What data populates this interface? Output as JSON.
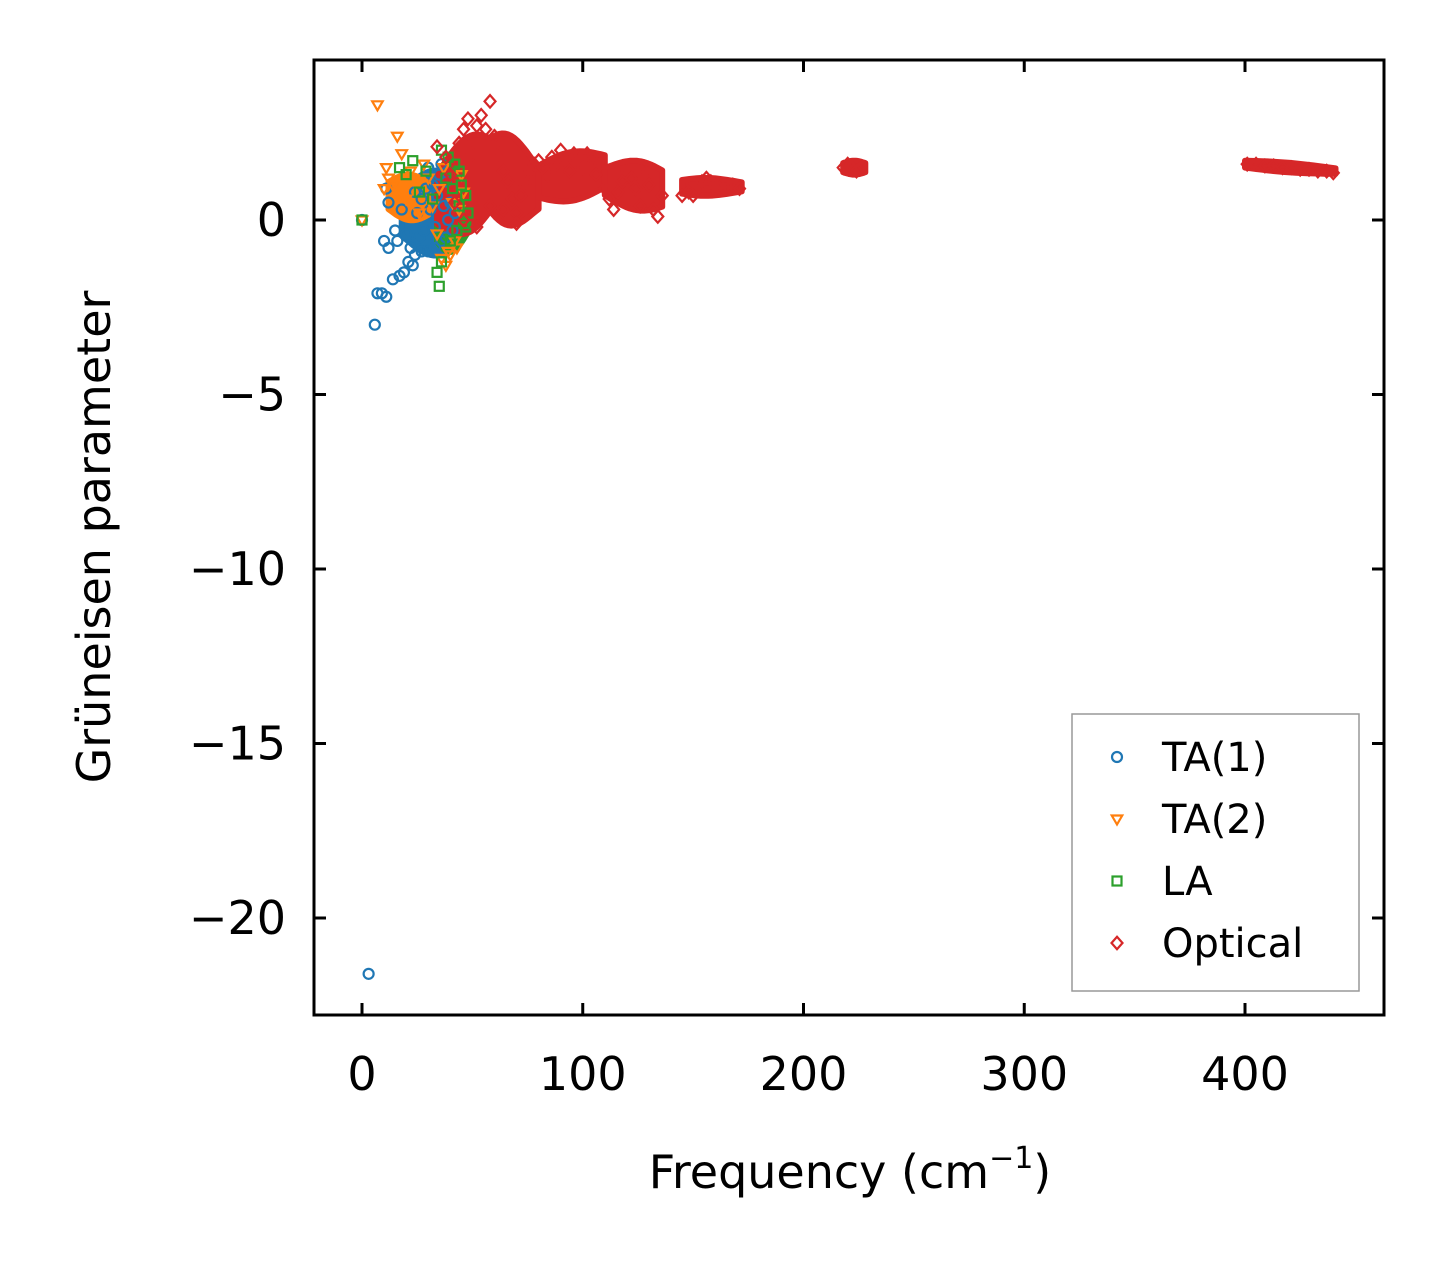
{
  "chart_data": {
    "type": "scatter",
    "title": "",
    "xlabel": "Frequency (cm",
    "xlabel_sup": "−1",
    "xlabel_close": ")",
    "ylabel": "Grüneisen parameter",
    "xlim": [
      -22,
      462
    ],
    "ylim": [
      -22.8,
      4.6
    ],
    "x_ticks": [
      0,
      100,
      200,
      300,
      400
    ],
    "x_tick_labels": [
      "0",
      "100",
      "200",
      "300",
      "400"
    ],
    "y_ticks": [
      0,
      -5,
      -10,
      -15,
      -20
    ],
    "y_tick_labels": [
      "0",
      "−5",
      "−10",
      "−15",
      "−20"
    ],
    "legend_position": "lower-right",
    "grid": false,
    "series": [
      {
        "name": "TA(1)",
        "marker": "circle",
        "color": "#1f77b4",
        "points": [
          [
            0,
            0
          ],
          [
            3,
            -21.6
          ],
          [
            5.8,
            -3.0
          ],
          [
            7,
            -2.1
          ],
          [
            9,
            -2.1
          ],
          [
            11,
            -2.2
          ],
          [
            10,
            -0.6
          ],
          [
            12,
            -0.8
          ],
          [
            14,
            -1.7
          ],
          [
            17,
            -1.6
          ],
          [
            19,
            -1.5
          ],
          [
            21,
            -1.2
          ],
          [
            23,
            -1.3
          ],
          [
            11,
            0.9
          ],
          [
            12,
            0.5
          ],
          [
            15,
            -0.3
          ],
          [
            16,
            -0.6
          ],
          [
            18,
            0.3
          ],
          [
            20,
            -0.4
          ],
          [
            22,
            -0.8
          ],
          [
            24,
            -1.0
          ],
          [
            25,
            0.2
          ],
          [
            26,
            -0.5
          ],
          [
            27,
            0.6
          ],
          [
            28,
            -0.3
          ],
          [
            29,
            0.9
          ],
          [
            30,
            -0.9
          ],
          [
            31,
            0.3
          ],
          [
            32,
            1.0
          ],
          [
            33,
            -0.2
          ],
          [
            34,
            0.7
          ],
          [
            35,
            1.3
          ],
          [
            36,
            -0.6
          ],
          [
            37,
            0.4
          ],
          [
            38,
            1.1
          ],
          [
            39,
            0.0
          ],
          [
            40,
            0.5
          ],
          [
            41,
            -0.3
          ],
          [
            24,
            0.8
          ],
          [
            27,
            -0.9
          ],
          [
            30,
            1.5
          ],
          [
            33,
            -0.8
          ],
          [
            36,
            1.6
          ],
          [
            38,
            -0.5
          ],
          [
            42,
            0.2
          ]
        ]
      },
      {
        "name": "TA(2)",
        "marker": "triangle-down",
        "color": "#ff7f0e",
        "points": [
          [
            0,
            0
          ],
          [
            7,
            3.3
          ],
          [
            10,
            0.9
          ],
          [
            11,
            1.5
          ],
          [
            12,
            1.2
          ],
          [
            14,
            1.0
          ],
          [
            16,
            2.4
          ],
          [
            18,
            1.9
          ],
          [
            20,
            0.6
          ],
          [
            22,
            1.4
          ],
          [
            24,
            1.1
          ],
          [
            26,
            0.2
          ],
          [
            28,
            1.6
          ],
          [
            30,
            1.2
          ],
          [
            32,
            0.4
          ],
          [
            34,
            -0.4
          ],
          [
            36,
            -1.1
          ],
          [
            38,
            -1.3
          ],
          [
            40,
            -1.0
          ],
          [
            42,
            -0.6
          ],
          [
            44,
            0.3
          ],
          [
            46,
            0.8
          ],
          [
            45,
            1.3
          ],
          [
            43,
            -0.8
          ],
          [
            41,
            0.5
          ],
          [
            39,
            -0.9
          ],
          [
            37,
            1.5
          ],
          [
            35,
            0.9
          ]
        ]
      },
      {
        "name": "LA",
        "marker": "square",
        "color": "#2ca02c",
        "points": [
          [
            0,
            0
          ],
          [
            17,
            1.5
          ],
          [
            20,
            1.3
          ],
          [
            23,
            1.7
          ],
          [
            26,
            0.8
          ],
          [
            29,
            1.4
          ],
          [
            32,
            0.6
          ],
          [
            34,
            -1.5
          ],
          [
            35,
            -1.9
          ],
          [
            36,
            2.0
          ],
          [
            38,
            1.2
          ],
          [
            40,
            -0.6
          ],
          [
            41,
            0.9
          ],
          [
            42,
            1.6
          ],
          [
            43,
            -0.3
          ],
          [
            44,
            0.4
          ],
          [
            45,
            1.0
          ],
          [
            46,
            -0.1
          ],
          [
            47,
            0.7
          ],
          [
            48,
            0.2
          ],
          [
            36,
            -1.2
          ],
          [
            39,
            1.8
          ],
          [
            44,
            1.4
          ],
          [
            47,
            -0.2
          ]
        ]
      },
      {
        "name": "Optical",
        "marker": "diamond",
        "color": "#d62728",
        "points": [
          [
            34,
            2.1
          ],
          [
            38,
            1.8
          ],
          [
            40,
            1.3
          ],
          [
            42,
            0.5
          ],
          [
            44,
            2.2
          ],
          [
            46,
            2.6
          ],
          [
            48,
            2.9
          ],
          [
            50,
            1.9
          ],
          [
            52,
            2.7
          ],
          [
            54,
            3.0
          ],
          [
            56,
            2.6
          ],
          [
            58,
            3.4
          ],
          [
            60,
            2.4
          ],
          [
            62,
            1.9
          ],
          [
            64,
            1.4
          ],
          [
            66,
            1.1
          ],
          [
            68,
            0.6
          ],
          [
            70,
            0.2
          ],
          [
            72,
            0.7
          ],
          [
            74,
            1.0
          ],
          [
            76,
            1.4
          ],
          [
            78,
            1.6
          ],
          [
            80,
            1.7
          ],
          [
            82,
            1.5
          ],
          [
            84,
            1.3
          ],
          [
            86,
            1.8
          ],
          [
            88,
            1.6
          ],
          [
            90,
            2.0
          ],
          [
            92,
            1.7
          ],
          [
            94,
            1.4
          ],
          [
            96,
            1.9
          ],
          [
            98,
            1.8
          ],
          [
            100,
            1.5
          ],
          [
            102,
            1.9
          ],
          [
            104,
            1.8
          ],
          [
            106,
            1.3
          ],
          [
            108,
            1.6
          ],
          [
            110,
            0.9
          ],
          [
            112,
            0.6
          ],
          [
            114,
            0.3
          ],
          [
            116,
            0.8
          ],
          [
            118,
            1.1
          ],
          [
            120,
            1.4
          ],
          [
            122,
            1.2
          ],
          [
            124,
            0.9
          ],
          [
            126,
            0.4
          ],
          [
            128,
            1.3
          ],
          [
            130,
            1.0
          ],
          [
            132,
            0.3
          ],
          [
            134,
            0.1
          ],
          [
            136,
            0.7
          ],
          [
            46,
            0.0
          ],
          [
            52,
            -0.2
          ],
          [
            58,
            0.4
          ],
          [
            64,
            0.3
          ],
          [
            70,
            -0.1
          ],
          [
            145,
            0.7
          ],
          [
            148,
            0.8
          ],
          [
            150,
            0.7
          ],
          [
            152,
            0.9
          ],
          [
            154,
            1.1
          ],
          [
            156,
            1.2
          ],
          [
            158,
            1.1
          ],
          [
            160,
            1.0
          ],
          [
            162,
            0.9
          ],
          [
            165,
            1.0
          ],
          [
            168,
            1.0
          ],
          [
            171,
            0.9
          ],
          [
            218,
            1.5
          ],
          [
            220,
            1.6
          ],
          [
            222,
            1.5
          ],
          [
            224,
            1.4
          ],
          [
            226,
            1.5
          ],
          [
            401,
            1.6
          ],
          [
            405,
            1.6
          ],
          [
            409,
            1.55
          ],
          [
            413,
            1.55
          ],
          [
            417,
            1.5
          ],
          [
            421,
            1.5
          ],
          [
            425,
            1.45
          ],
          [
            429,
            1.45
          ],
          [
            433,
            1.4
          ],
          [
            437,
            1.4
          ],
          [
            440,
            1.35
          ]
        ]
      }
    ],
    "regions": [
      {
        "series": "TA(1)",
        "x_range": [
          18,
          44
        ],
        "y_center": [
          0.2,
          0.2
        ],
        "y_half": [
          1.0,
          1.4
        ]
      },
      {
        "series": "LA",
        "x_range": [
          34,
          48
        ],
        "y_center": [
          0.3,
          0.3
        ],
        "y_half": [
          1.4,
          1.0
        ]
      },
      {
        "series": "TA(2)",
        "x_range": [
          12,
          30
        ],
        "y_center": [
          0.7,
          0.6
        ],
        "y_half": [
          0.6,
          0.7
        ]
      },
      {
        "series": "Optical",
        "x_range": [
          34,
          58
        ],
        "y_center": [
          0.6,
          1.3
        ],
        "y_half": [
          1.1,
          1.6
        ]
      },
      {
        "series": "Optical",
        "x_range": [
          58,
          80
        ],
        "y_center": [
          1.3,
          0.9
        ],
        "y_half": [
          1.6,
          0.9
        ]
      },
      {
        "series": "Optical",
        "x_range": [
          80,
          110
        ],
        "y_center": [
          1.1,
          1.4
        ],
        "y_half": [
          0.7,
          0.7
        ]
      },
      {
        "series": "Optical",
        "x_range": [
          110,
          136
        ],
        "y_center": [
          1.1,
          0.9
        ],
        "y_half": [
          0.6,
          0.8
        ]
      },
      {
        "series": "Optical",
        "x_range": [
          145,
          172
        ],
        "y_center": [
          0.95,
          0.95
        ],
        "y_half": [
          0.3,
          0.2
        ]
      },
      {
        "series": "Optical",
        "x_range": [
          218,
          228
        ],
        "y_center": [
          1.5,
          1.5
        ],
        "y_half": [
          0.2,
          0.2
        ]
      },
      {
        "series": "Optical",
        "x_range": [
          400,
          441
        ],
        "y_center": [
          1.6,
          1.4
        ],
        "y_half": [
          0.15,
          0.12
        ]
      }
    ]
  }
}
